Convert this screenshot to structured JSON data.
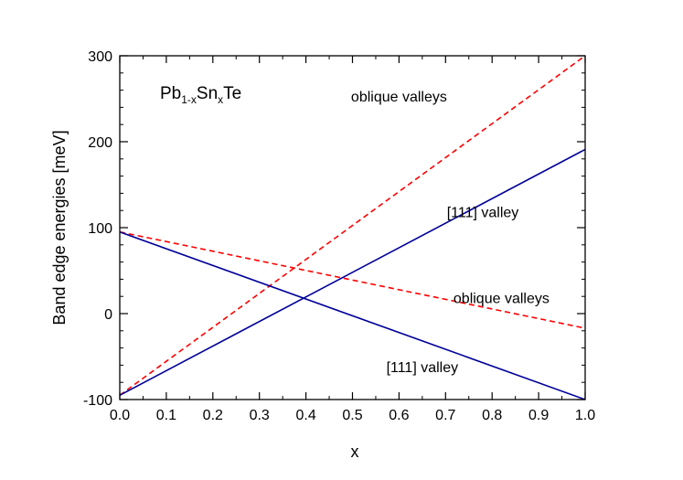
{
  "chart_data": {
    "type": "line",
    "title": "",
    "xlabel": "x",
    "ylabel": "Band edge energies [meV]",
    "xlim": [
      0,
      1
    ],
    "ylim": [
      -100,
      300
    ],
    "x_ticks": [
      "0.0",
      "0.1",
      "0.2",
      "0.3",
      "0.4",
      "0.5",
      "0.6",
      "0.7",
      "0.8",
      "0.9",
      "1.0"
    ],
    "y_ticks": [
      "-100",
      "0",
      "100",
      "200",
      "300"
    ],
    "grid": false,
    "legend": "none",
    "material_label": {
      "base": "Pb",
      "sub1": "1-x",
      "mid": "Sn",
      "sub2": "x",
      "end": "Te"
    },
    "series": [
      {
        "style": "dashed",
        "color": "#ff0000",
        "x": [
          0,
          1
        ],
        "y": [
          -95,
          300
        ]
      },
      {
        "style": "dashed",
        "color": "#ff0000",
        "x": [
          0,
          1
        ],
        "y": [
          95,
          -17
        ]
      },
      {
        "style": "solid",
        "color": "#000099",
        "x": [
          0,
          1
        ],
        "y": [
          -95,
          191
        ]
      },
      {
        "style": "solid",
        "color": "#000099",
        "x": [
          0,
          1
        ],
        "y": [
          95,
          -100
        ]
      }
    ],
    "annotations": [
      {
        "text": "oblique valleys",
        "x": 0.6,
        "y": 247
      },
      {
        "text": "[111] valley",
        "x": 0.78,
        "y": 112
      },
      {
        "text": "oblique valleys",
        "x": 0.82,
        "y": 12
      },
      {
        "text": "[111] valley",
        "x": 0.65,
        "y": -68
      }
    ]
  }
}
